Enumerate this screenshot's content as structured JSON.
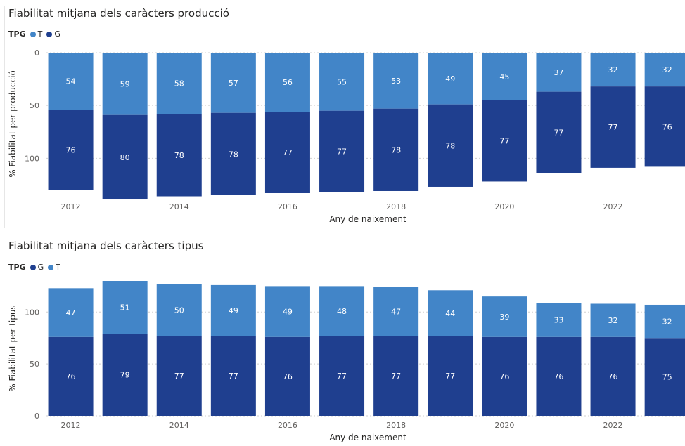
{
  "colors": {
    "T": "#4285c8",
    "G": "#1f3f8f",
    "grid": "#d0d0d0",
    "label": "#ffffff",
    "axis": "#605e5c"
  },
  "chart_data": [
    {
      "type": "bar",
      "stacked": true,
      "title": "Fiabilitat mitjana dels caràcters producció",
      "legend_title": "TPG",
      "legend_position": "top-left",
      "xlabel": "Any de naixement",
      "ylabel": "% Fiabilitat per producció",
      "y_inverted": true,
      "ylim": [
        0,
        135
      ],
      "yticks": [
        0,
        50,
        100
      ],
      "grid": true,
      "categories": [
        "2012",
        "2013",
        "2014",
        "2015",
        "2016",
        "2017",
        "2018",
        "2019",
        "2020",
        "2021",
        "2022",
        "2023"
      ],
      "xtick_labels": [
        "2012",
        "",
        "2014",
        "",
        "2016",
        "",
        "2018",
        "",
        "2020",
        "",
        "2022",
        ""
      ],
      "series": [
        {
          "name": "T",
          "color": "#4285c8",
          "values": [
            54,
            59,
            58,
            57,
            56,
            55,
            53,
            49,
            45,
            37,
            32,
            32
          ]
        },
        {
          "name": "G",
          "color": "#1f3f8f",
          "values": [
            76,
            80,
            78,
            78,
            77,
            77,
            78,
            78,
            77,
            77,
            77,
            76
          ]
        }
      ]
    },
    {
      "type": "bar",
      "stacked": true,
      "title": "Fiabilitat mitjana dels caràcters tipus",
      "legend_title": "TPG",
      "legend_position": "top-left",
      "xlabel": "Any de naixement",
      "ylabel": "% Fiabilitat per tipus",
      "y_inverted": false,
      "ylim": [
        0,
        130
      ],
      "yticks": [
        0,
        50,
        100
      ],
      "grid": true,
      "categories": [
        "2012",
        "2013",
        "2014",
        "2015",
        "2016",
        "2017",
        "2018",
        "2019",
        "2020",
        "2021",
        "2022",
        "2023"
      ],
      "xtick_labels": [
        "2012",
        "",
        "2014",
        "",
        "2016",
        "",
        "2018",
        "",
        "2020",
        "",
        "2022",
        ""
      ],
      "series": [
        {
          "name": "G",
          "color": "#1f3f8f",
          "values": [
            76,
            79,
            77,
            77,
            76,
            77,
            77,
            77,
            76,
            76,
            76,
            75
          ]
        },
        {
          "name": "T",
          "color": "#4285c8",
          "values": [
            47,
            51,
            50,
            49,
            49,
            48,
            47,
            44,
            39,
            33,
            32,
            32
          ]
        }
      ]
    }
  ]
}
